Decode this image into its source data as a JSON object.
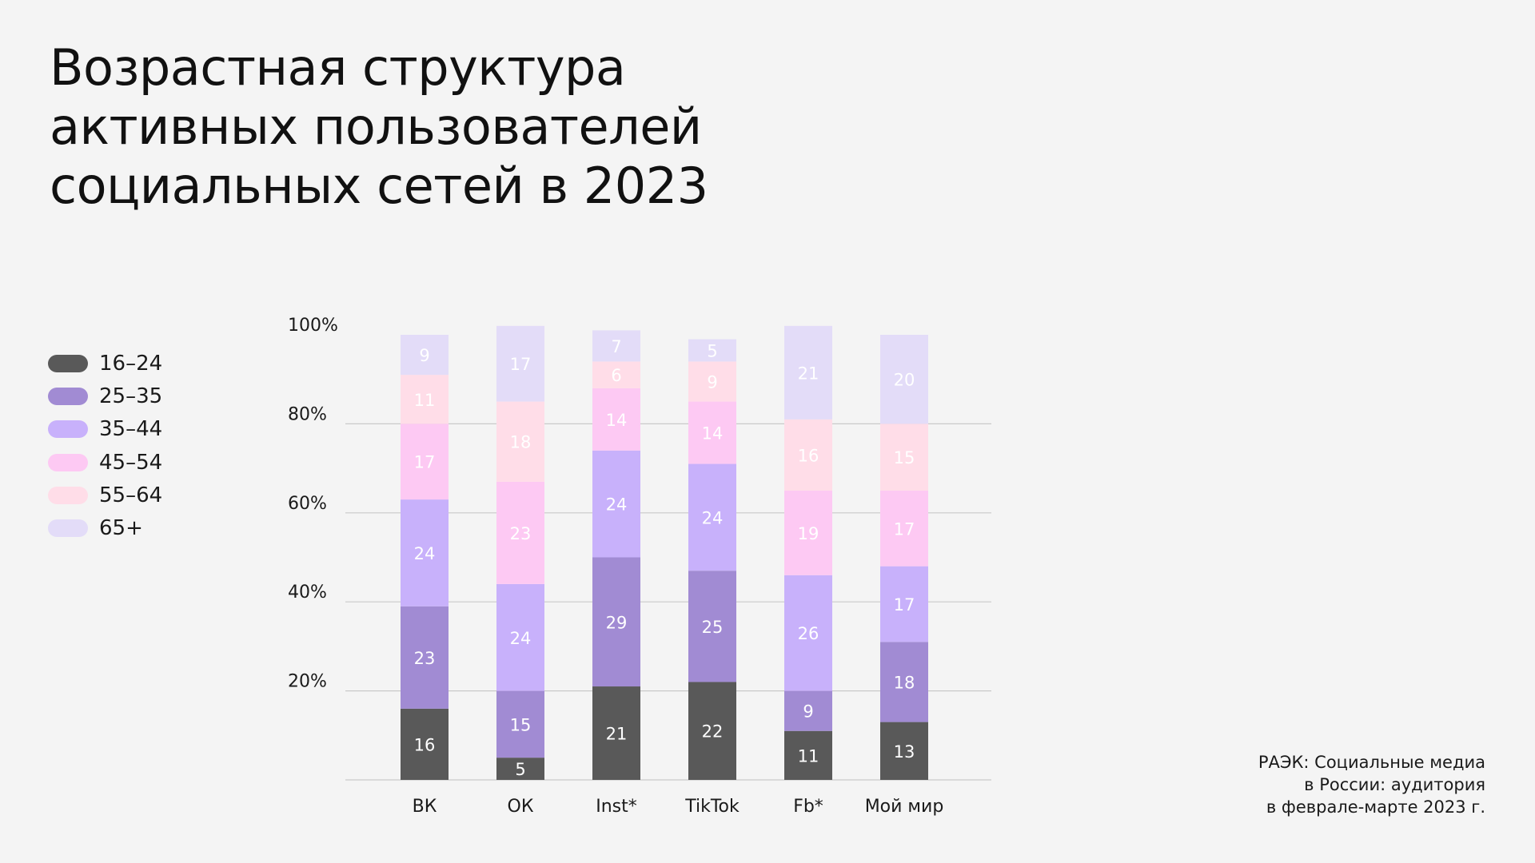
{
  "title_lines": [
    "Возрастная структура",
    "активных пользователей",
    "социальных сетей в 2023"
  ],
  "source_lines": [
    "РАЭК: Социальные медиа",
    "в России: аудитория",
    "в феврале-марте 2023 г."
  ],
  "chart_data": {
    "type": "bar",
    "stacked": true,
    "title": "Возрастная структура активных пользователей социальных сетей в 2023",
    "categories": [
      "ВК",
      "ОК",
      "Inst*",
      "TikTok",
      "Fb*",
      "Мой мир"
    ],
    "y_ticks": [
      "20%",
      "40%",
      "60%",
      "80%",
      "100%"
    ],
    "ylim": [
      0,
      100
    ],
    "grid": true,
    "legend_position": "left",
    "series": [
      {
        "name": "16–24",
        "color": "#595959",
        "label_color": "#ffffff",
        "values": [
          16,
          5,
          21,
          22,
          11,
          13
        ]
      },
      {
        "name": "25–35",
        "color": "#a18bd3",
        "label_color": "#ffffff",
        "values": [
          23,
          15,
          29,
          25,
          9,
          18
        ]
      },
      {
        "name": "35–44",
        "color": "#c8b1fb",
        "label_color": "#ffffff",
        "values": [
          24,
          24,
          24,
          24,
          26,
          17
        ]
      },
      {
        "name": "45–54",
        "color": "#fdc9f3",
        "label_color": "#ffffff",
        "values": [
          17,
          23,
          14,
          14,
          19,
          17
        ]
      },
      {
        "name": "55–64",
        "color": "#ffdde8",
        "label_color": "#ffffff",
        "values": [
          11,
          18,
          6,
          9,
          16,
          15
        ]
      },
      {
        "name": "65+",
        "color": "#e3dcf8",
        "label_color": "#ffffff",
        "values": [
          9,
          17,
          7,
          5,
          21,
          20
        ]
      }
    ]
  }
}
